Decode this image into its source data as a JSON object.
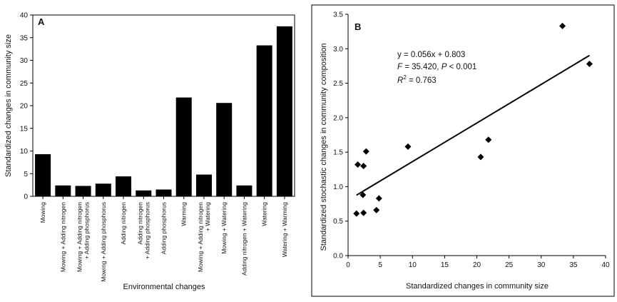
{
  "chart_data": [
    {
      "type": "bar",
      "panel_label": "A",
      "title": "",
      "xlabel": "Environmental changes",
      "ylabel": "Standardized changes in community size",
      "ylim": [
        0,
        40
      ],
      "yticks": [
        0,
        5,
        10,
        15,
        20,
        25,
        30,
        35,
        40
      ],
      "categories": [
        [
          "Mowing"
        ],
        [
          "Mowing + Adding nitrogen"
        ],
        [
          "Mowing + Adding nitrogen",
          "+ Adding phosphorus"
        ],
        [
          "Mowing + Adding phosphorus"
        ],
        [
          "Adding nitrogen"
        ],
        [
          "Adding nitrogen",
          "+ Adding phosphorus"
        ],
        [
          "Adding phosphorus"
        ],
        [
          "Warming"
        ],
        [
          "Mowing + Adding nitrogen",
          "+ Watering"
        ],
        [
          "Mowing + Watering"
        ],
        [
          "Adding nitrogen + Watering"
        ],
        [
          "Watering"
        ],
        [
          "Watering + Warming"
        ]
      ],
      "values": [
        9.3,
        2.4,
        2.3,
        2.8,
        4.4,
        1.3,
        1.5,
        21.8,
        4.8,
        20.6,
        2.4,
        33.3,
        37.5
      ],
      "bar_color": "#000000",
      "grid": false
    },
    {
      "type": "scatter",
      "panel_label": "B",
      "title": "",
      "xlabel": "Standardized changes in community size",
      "ylabel": "Standardized stochastic changes in community composition",
      "xlim": [
        0,
        40
      ],
      "ylim": [
        0.0,
        3.5
      ],
      "xticks": [
        0,
        5,
        10,
        15,
        20,
        25,
        30,
        35,
        40
      ],
      "yticks": [
        "0.0",
        "0.5",
        "1.0",
        "1.5",
        "2.0",
        "2.5",
        "3.0",
        "3.5"
      ],
      "points": [
        {
          "x": 1.3,
          "y": 0.61
        },
        {
          "x": 2.4,
          "y": 0.62
        },
        {
          "x": 2.3,
          "y": 0.88
        },
        {
          "x": 4.4,
          "y": 0.66
        },
        {
          "x": 4.8,
          "y": 0.83
        },
        {
          "x": 1.5,
          "y": 1.32
        },
        {
          "x": 2.4,
          "y": 1.3
        },
        {
          "x": 2.8,
          "y": 1.51
        },
        {
          "x": 9.3,
          "y": 1.58
        },
        {
          "x": 20.6,
          "y": 1.43
        },
        {
          "x": 21.8,
          "y": 1.68
        },
        {
          "x": 33.3,
          "y": 3.33
        },
        {
          "x": 37.5,
          "y": 2.78
        }
      ],
      "marker": "diamond",
      "fit": {
        "slope": 0.056,
        "intercept": 0.803,
        "x_range": [
          1.3,
          37.5
        ]
      },
      "annotations": {
        "equation": "y = 0.056x + 0.803",
        "f_label": "F",
        "f_value": " = 35.420, ",
        "p_label": "P",
        "p_value": " < 0.001",
        "r_label": "R",
        "r_exp": "2",
        "r_value": " = 0.763"
      },
      "grid": false
    }
  ]
}
